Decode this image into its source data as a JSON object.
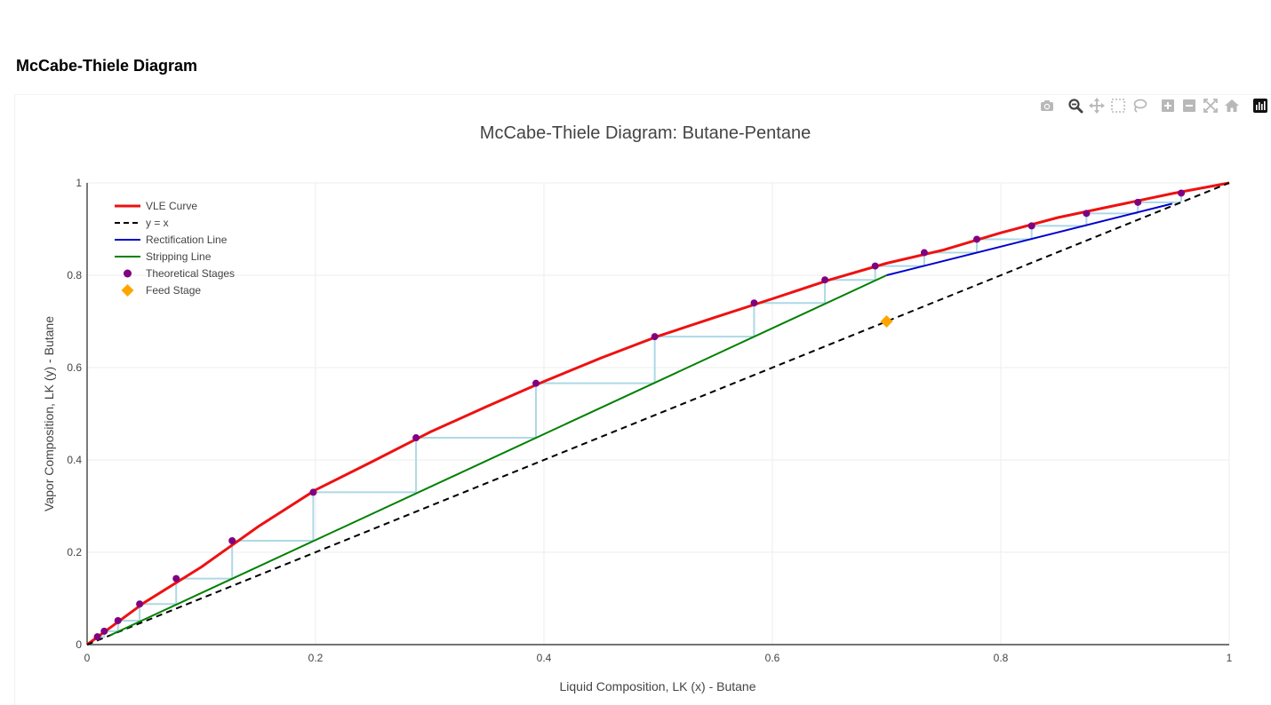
{
  "page": {
    "heading": "McCabe-Thiele Diagram"
  },
  "modebar": {
    "buttons": [
      {
        "name": "camera-icon"
      },
      {
        "name": "zoom-icon"
      },
      {
        "name": "pan-icon"
      },
      {
        "name": "box-select-icon"
      },
      {
        "name": "lasso-select-icon"
      },
      {
        "name": "zoom-in-icon"
      },
      {
        "name": "zoom-out-icon"
      },
      {
        "name": "autoscale-icon"
      },
      {
        "name": "reset-axes-icon"
      },
      {
        "name": "plotly-logo-icon"
      }
    ]
  },
  "chart_data": {
    "type": "line",
    "title": "McCabe-Thiele Diagram: Butane-Pentane",
    "xlabel": "Liquid Composition, LK (x) - Butane",
    "ylabel": "Vapor Composition, LK (y) - Butane",
    "xlim": [
      0,
      1
    ],
    "ylim": [
      0,
      1
    ],
    "x_ticks": [
      0,
      0.2,
      0.4,
      0.6,
      0.8,
      1
    ],
    "x_tick_labels": [
      "0",
      "0.2",
      "0.4",
      "0.6",
      "0.8",
      "1"
    ],
    "y_ticks": [
      0,
      0.2,
      0.4,
      0.6,
      0.8,
      1
    ],
    "y_tick_labels": [
      "0",
      "0.2",
      "0.4",
      "0.6",
      "0.8",
      "1"
    ],
    "grid": true,
    "legend_position": "top-left",
    "series": [
      {
        "name": "VLE Curve",
        "kind": "line",
        "color": "#ee1111",
        "dash": "solid",
        "x": [
          0,
          0.05,
          0.1,
          0.15,
          0.2,
          0.25,
          0.3,
          0.35,
          0.4,
          0.45,
          0.5,
          0.55,
          0.6,
          0.65,
          0.7,
          0.75,
          0.8,
          0.85,
          0.9,
          0.95,
          1
        ],
        "y": [
          0,
          0.091,
          0.168,
          0.256,
          0.335,
          0.397,
          0.46,
          0.516,
          0.57,
          0.621,
          0.668,
          0.709,
          0.749,
          0.79,
          0.826,
          0.855,
          0.892,
          0.925,
          0.951,
          0.977,
          1.0
        ]
      },
      {
        "name": "y = x",
        "kind": "line",
        "color": "#000000",
        "dash": "dash",
        "x": [
          0,
          1
        ],
        "y": [
          0,
          1
        ]
      },
      {
        "name": "Rectification Line",
        "kind": "line",
        "color": "#0000cc",
        "dash": "solid",
        "x": [
          0.7,
          0.95
        ],
        "y": [
          0.8,
          0.955
        ]
      },
      {
        "name": "Stripping Line",
        "kind": "line",
        "color": "#008000",
        "dash": "solid",
        "x": [
          0.02,
          0.7
        ],
        "y": [
          0.02,
          0.8
        ]
      },
      {
        "name": "Theoretical Stages",
        "kind": "markers",
        "color": "#800080",
        "x": [
          0.958,
          0.92,
          0.875,
          0.827,
          0.779,
          0.733,
          0.69,
          0.646,
          0.584,
          0.497,
          0.393,
          0.288,
          0.198,
          0.127,
          0.078,
          0.046,
          0.027,
          0.015,
          0.009
        ],
        "y": [
          0.978,
          0.958,
          0.934,
          0.907,
          0.878,
          0.849,
          0.82,
          0.79,
          0.74,
          0.667,
          0.566,
          0.448,
          0.33,
          0.225,
          0.143,
          0.088,
          0.052,
          0.029,
          0.017
        ]
      },
      {
        "name": "Feed Stage",
        "kind": "diamond",
        "color": "#ffa500",
        "x": [
          0.7
        ],
        "y": [
          0.7
        ]
      }
    ],
    "stage_steps_color": "#add8e6"
  }
}
